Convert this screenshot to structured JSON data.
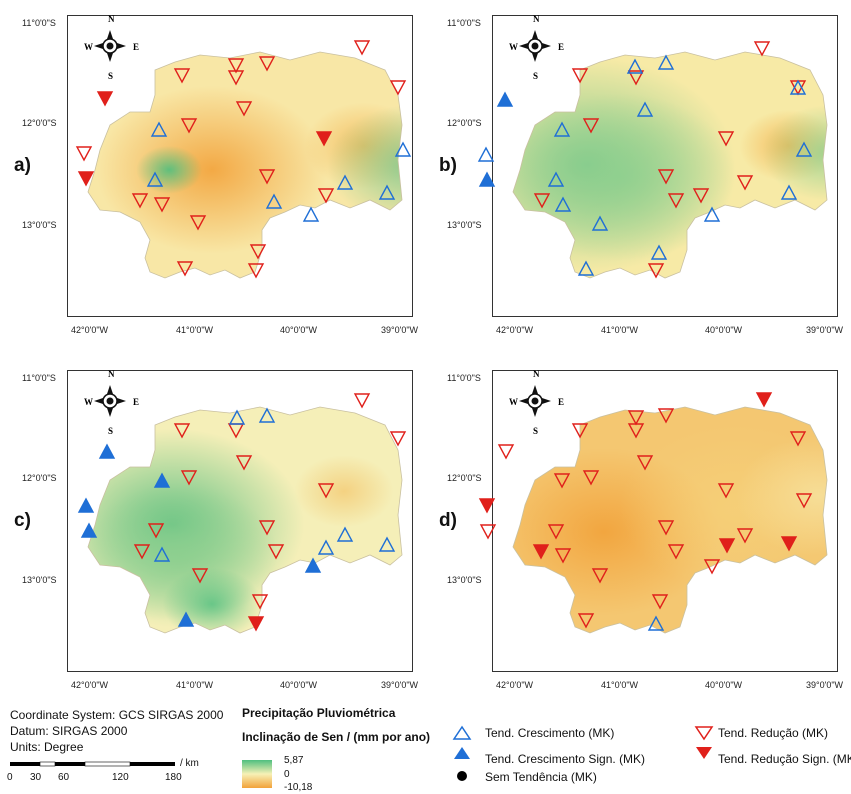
{
  "panels": [
    {
      "label": "a)",
      "variant": "a"
    },
    {
      "label": "b)",
      "variant": "b"
    },
    {
      "label": "c)",
      "variant": "c"
    },
    {
      "label": "d)",
      "variant": "d"
    }
  ],
  "axes": {
    "lat_labels": [
      "11°0'0\"S",
      "12°0'0\"S",
      "13°0'0\"S"
    ],
    "lat_labels_right": [
      "11°0'0\"S",
      "12°0'0\"S",
      "13°0'0\"S"
    ],
    "lat_labels_c": [
      "11°0'0\"S",
      "12°0'0\"S",
      "13°0'0\"S"
    ],
    "lat_labels_d": [
      "11°0'0\"S",
      "12°0'0\"S",
      "13°0'0\"S"
    ],
    "lon_labels": [
      "42°0'0\"W",
      "41°0'0\"W",
      "40°0'0\"W",
      "39°0'0\"W"
    ]
  },
  "north_arrow": {
    "n": "N",
    "s": "S",
    "w": "W",
    "e": "E"
  },
  "info": {
    "coord_system": "Coordinate System: GCS SIRGAS 2000",
    "datum": "Datum: SIRGAS 2000",
    "units": "Units: Degree"
  },
  "scale_bar": {
    "unit": "/ km",
    "ticks": [
      "0",
      "30",
      "60",
      "120",
      "180"
    ]
  },
  "legend": {
    "title": "Precipitação Pluviométrica",
    "subtitle": "Inclinação de Sen / (mm por ano)",
    "ramp_max": "5,87",
    "ramp_mid": "0",
    "ramp_min": "-10,18",
    "items": {
      "up": "Tend. Crescimento (MK)",
      "up_sig": "Tend. Crescimento Sign. (MK)",
      "none": "Sem Tendência (MK)",
      "down": "Tend. Redução (MK)",
      "down_sig": "Tend. Redução Sign. (MK)"
    }
  },
  "colors": {
    "increase": "#1f6fd6",
    "decrease": "#e0201b",
    "ramp_high": "#4fbf7f",
    "ramp_mid": "#f7f1b6",
    "ramp_low": "#f2a23a"
  }
}
